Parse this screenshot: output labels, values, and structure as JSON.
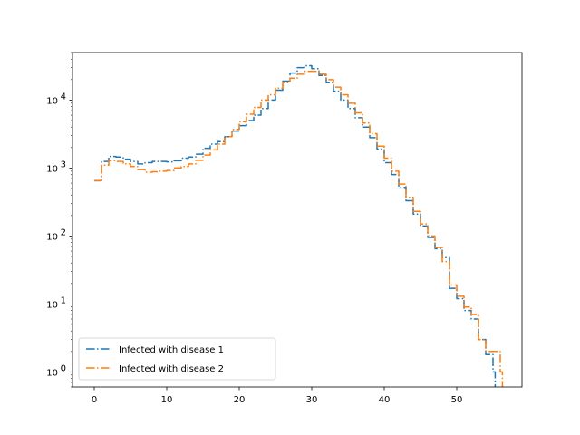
{
  "chart_data": {
    "type": "line",
    "title": "",
    "xlabel": "",
    "ylabel": "",
    "xlim": [
      -3,
      59
    ],
    "ylim": [
      0.6,
      50000
    ],
    "yscale": "log",
    "x_ticks": [
      0,
      10,
      20,
      30,
      40,
      50
    ],
    "x_tick_labels": [
      "0",
      "10",
      "20",
      "30",
      "40",
      "50"
    ],
    "y_ticks": [
      1,
      10,
      100,
      1000,
      10000
    ],
    "y_tick_labels": [
      {
        "base": "10",
        "exp": "0"
      },
      {
        "base": "10",
        "exp": "1"
      },
      {
        "base": "10",
        "exp": "2"
      },
      {
        "base": "10",
        "exp": "3"
      },
      {
        "base": "10",
        "exp": "4"
      }
    ],
    "grid": false,
    "legend_position": "lower-left",
    "line_style": "dash-dot",
    "series": [
      {
        "name": "Infected with disease 1",
        "color": "#1f77b4",
        "x": [
          0,
          1,
          2,
          3,
          4,
          5,
          6,
          7,
          8,
          9,
          10,
          11,
          12,
          13,
          14,
          15,
          16,
          17,
          18,
          19,
          20,
          21,
          22,
          23,
          24,
          25,
          26,
          27,
          28,
          29,
          30,
          31,
          32,
          33,
          34,
          35,
          36,
          37,
          38,
          39,
          40,
          41,
          42,
          43,
          44,
          45,
          46,
          47,
          48,
          49,
          50,
          51,
          52,
          53,
          54,
          55
        ],
        "y": [
          650,
          1250,
          1480,
          1450,
          1350,
          1250,
          1150,
          1200,
          1250,
          1250,
          1230,
          1280,
          1400,
          1450,
          1600,
          1950,
          2250,
          2450,
          2900,
          3500,
          4200,
          5000,
          6000,
          7500,
          10000,
          14000,
          19000,
          25000,
          30000,
          32000,
          29000,
          23000,
          18000,
          13500,
          10000,
          7500,
          5500,
          4000,
          2800,
          1900,
          1200,
          800,
          520,
          330,
          210,
          140,
          95,
          65,
          48,
          17,
          12,
          8,
          6,
          3,
          1.8,
          1
        ]
      },
      {
        "name": "Infected with disease 2",
        "color": "#ff7f0e",
        "x": [
          0,
          1,
          2,
          3,
          4,
          5,
          6,
          7,
          8,
          9,
          10,
          11,
          12,
          13,
          14,
          15,
          16,
          17,
          18,
          19,
          20,
          21,
          22,
          23,
          24,
          25,
          26,
          27,
          28,
          29,
          30,
          31,
          32,
          33,
          34,
          35,
          36,
          37,
          38,
          39,
          40,
          41,
          42,
          43,
          44,
          45,
          46,
          47,
          48,
          49,
          50,
          51,
          52,
          53,
          54,
          55,
          56
        ],
        "y": [
          650,
          1100,
          1280,
          1250,
          1150,
          1050,
          950,
          870,
          880,
          900,
          920,
          1000,
          1050,
          1150,
          1300,
          1550,
          1850,
          2250,
          2900,
          3700,
          4800,
          6200,
          7800,
          10000,
          12000,
          15000,
          18000,
          21000,
          24000,
          26500,
          26500,
          24000,
          20000,
          15500,
          12000,
          9000,
          6500,
          4600,
          3200,
          2100,
          1400,
          900,
          580,
          370,
          230,
          150,
          100,
          68,
          42,
          19,
          13,
          9,
          7,
          3,
          2,
          2,
          1
        ]
      }
    ]
  }
}
